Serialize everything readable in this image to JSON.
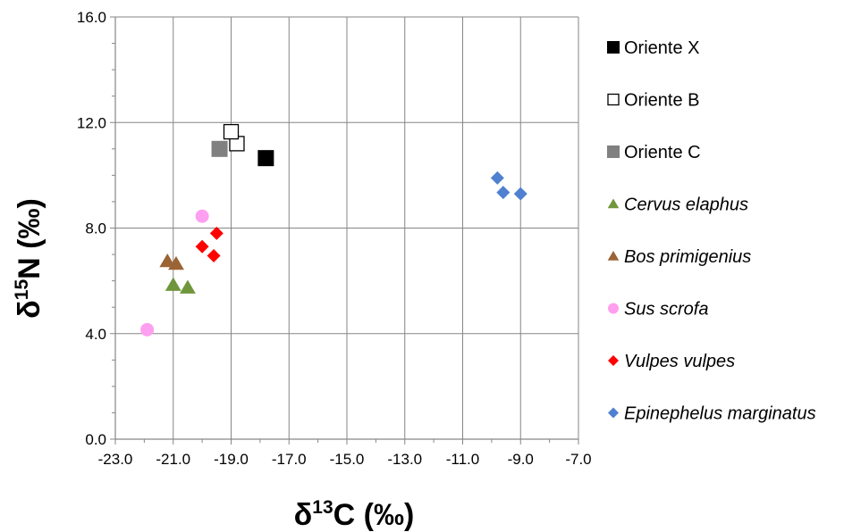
{
  "chart_data": {
    "type": "scatter",
    "xlabel": "δ13C (‰)",
    "ylabel": "δ15N (‰)",
    "xlim": [
      -23.0,
      -7.0
    ],
    "ylim": [
      0.0,
      16.0
    ],
    "x_ticks": [
      "-23.0",
      "-21.0",
      "-19.0",
      "-17.0",
      "-15.0",
      "-13.0",
      "-11.0",
      "-9.0",
      "-7.0"
    ],
    "y_ticks": [
      "0.0",
      "4.0",
      "8.0",
      "12.0",
      "16.0"
    ],
    "grid": true,
    "legend_position": "right",
    "series": [
      {
        "name": "Oriente X",
        "marker": "square",
        "color": "#000000",
        "italic": false,
        "points": [
          [
            -17.8,
            10.65
          ]
        ]
      },
      {
        "name": "Oriente B",
        "marker": "square-open",
        "color": "#000000",
        "italic": false,
        "points": [
          [
            -18.8,
            11.2
          ],
          [
            -19.0,
            11.65
          ]
        ]
      },
      {
        "name": "Oriente C",
        "marker": "square",
        "color": "#808080",
        "italic": false,
        "points": [
          [
            -19.4,
            11.0
          ]
        ]
      },
      {
        "name": "Cervus elaphus",
        "marker": "triangle",
        "color": "#70963c",
        "italic": true,
        "points": [
          [
            -21.0,
            5.85
          ],
          [
            -20.5,
            5.75
          ]
        ]
      },
      {
        "name": "Bos primigenius",
        "marker": "triangle",
        "color": "#9a6435",
        "italic": true,
        "points": [
          [
            -21.2,
            6.75
          ],
          [
            -20.9,
            6.65
          ]
        ]
      },
      {
        "name": "Sus scrofa",
        "marker": "circle",
        "color": "#ff9ff0",
        "italic": true,
        "points": [
          [
            -21.9,
            4.15
          ],
          [
            -20.0,
            8.45
          ]
        ]
      },
      {
        "name": "Vulpes vulpes",
        "marker": "diamond",
        "color": "#ff0000",
        "italic": true,
        "points": [
          [
            -19.5,
            7.8
          ],
          [
            -20.0,
            7.3
          ],
          [
            -19.6,
            6.95
          ]
        ]
      },
      {
        "name": "Epinephelus marginatus",
        "marker": "diamond",
        "color": "#4f81d0",
        "italic": true,
        "points": [
          [
            -9.8,
            9.9
          ],
          [
            -9.6,
            9.35
          ],
          [
            -9.0,
            9.3
          ]
        ]
      }
    ]
  }
}
